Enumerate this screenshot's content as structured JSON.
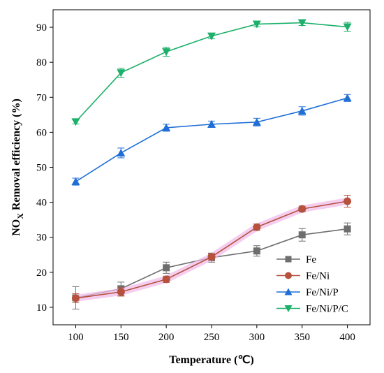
{
  "chart_data": {
    "type": "line",
    "title": "",
    "xlabel": "Temperature (℃)",
    "ylabel": {
      "prefix": "NO",
      "subscript": "X",
      "suffix": " Removal efficiency (%)"
    },
    "x": [
      100,
      150,
      200,
      250,
      300,
      350,
      400
    ],
    "xlim": [
      75,
      425
    ],
    "ylim": [
      5,
      95
    ],
    "xticks": [
      100,
      150,
      200,
      250,
      300,
      350,
      400
    ],
    "yticks": [
      10,
      20,
      30,
      40,
      50,
      60,
      70,
      80,
      90
    ],
    "grid": false,
    "legend_position": "bottom-right",
    "series": [
      {
        "name": "Fe",
        "marker": "square",
        "color": "#6e6e6e",
        "values": [
          12.7,
          15.3,
          21.3,
          24.2,
          26.1,
          30.7,
          32.4
        ],
        "errors": [
          3.2,
          1.9,
          1.6,
          1.3,
          1.5,
          1.8,
          1.7
        ]
      },
      {
        "name": "Fe/Ni",
        "marker": "circle",
        "color": "#b5513d",
        "halo": "#f0b8e8",
        "values": [
          12.6,
          14.4,
          18.0,
          24.4,
          32.9,
          38.1,
          40.3
        ],
        "errors": [
          1.3,
          1.2,
          0.9,
          0.9,
          0.9,
          0.8,
          1.7
        ]
      },
      {
        "name": "Fe/Ni/P",
        "marker": "triangle-up",
        "color": "#1f6fd6",
        "values": [
          45.9,
          54.1,
          61.3,
          62.3,
          62.9,
          66.1,
          69.8
        ],
        "errors": [
          1.0,
          1.4,
          1.0,
          0.9,
          1.1,
          1.2,
          1.0
        ]
      },
      {
        "name": "Fe/Ni/P/C",
        "marker": "triangle-down",
        "color": "#1cb06a",
        "values": [
          63.0,
          77.0,
          83.0,
          87.5,
          90.9,
          91.3,
          90.1
        ],
        "errors": [
          0.6,
          1.3,
          1.3,
          0.8,
          0.8,
          0.8,
          1.3
        ]
      }
    ]
  }
}
